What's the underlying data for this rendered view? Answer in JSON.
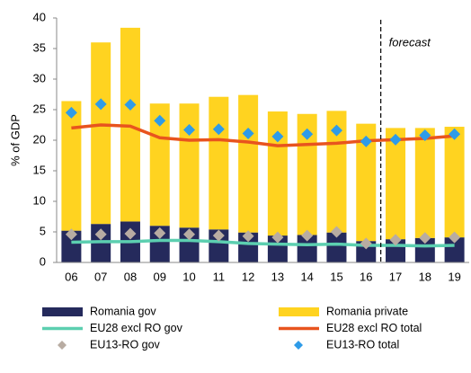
{
  "chart_data": {
    "type": "bar",
    "stacked": true,
    "y_label": "% of GDP",
    "annotation": "forecast",
    "forecast_from": "17",
    "categories": [
      "06",
      "07",
      "08",
      "09",
      "10",
      "11",
      "12",
      "13",
      "14",
      "15",
      "16",
      "17",
      "18",
      "19"
    ],
    "ylim": [
      0,
      40
    ],
    "yticks": [
      0,
      5,
      10,
      15,
      20,
      25,
      30,
      35,
      40
    ],
    "series": [
      {
        "name": "Romania gov",
        "kind": "bar",
        "color": "#252a5c",
        "values": [
          5.2,
          6.3,
          6.7,
          6.0,
          5.7,
          5.4,
          4.9,
          4.4,
          4.5,
          4.9,
          3.5,
          3.8,
          4.0,
          4.1
        ]
      },
      {
        "name": "Romania private",
        "kind": "bar",
        "color": "#ffd320",
        "values": [
          21.2,
          29.7,
          31.7,
          20.0,
          20.3,
          21.7,
          22.5,
          20.3,
          19.8,
          19.9,
          19.2,
          18.2,
          18.0,
          18.1
        ]
      },
      {
        "name": "EU28 excl RO gov",
        "kind": "line",
        "color": "#5ccfb0",
        "values": [
          3.3,
          3.4,
          3.4,
          3.6,
          3.6,
          3.4,
          3.1,
          3.0,
          2.9,
          3.0,
          2.8,
          2.8,
          2.7,
          2.8
        ]
      },
      {
        "name": "EU28 excl RO total",
        "kind": "line",
        "color": "#e8541e",
        "values": [
          22.0,
          22.5,
          22.3,
          20.4,
          20.0,
          20.1,
          19.7,
          19.1,
          19.3,
          19.5,
          19.9,
          20.1,
          20.3,
          20.7
        ]
      },
      {
        "name": "EU13-RO gov",
        "kind": "scatter",
        "color": "#b8aca2",
        "values": [
          4.6,
          4.6,
          4.7,
          4.8,
          4.6,
          4.4,
          4.3,
          4.1,
          4.4,
          5.0,
          3.1,
          3.7,
          4.0,
          4.1
        ]
      },
      {
        "name": "EU13-RO total",
        "kind": "scatter",
        "color": "#2e9be8",
        "values": [
          24.5,
          25.9,
          25.8,
          23.2,
          21.7,
          21.8,
          21.1,
          20.6,
          21.0,
          21.6,
          19.8,
          20.1,
          20.8,
          21.0
        ]
      }
    ]
  }
}
